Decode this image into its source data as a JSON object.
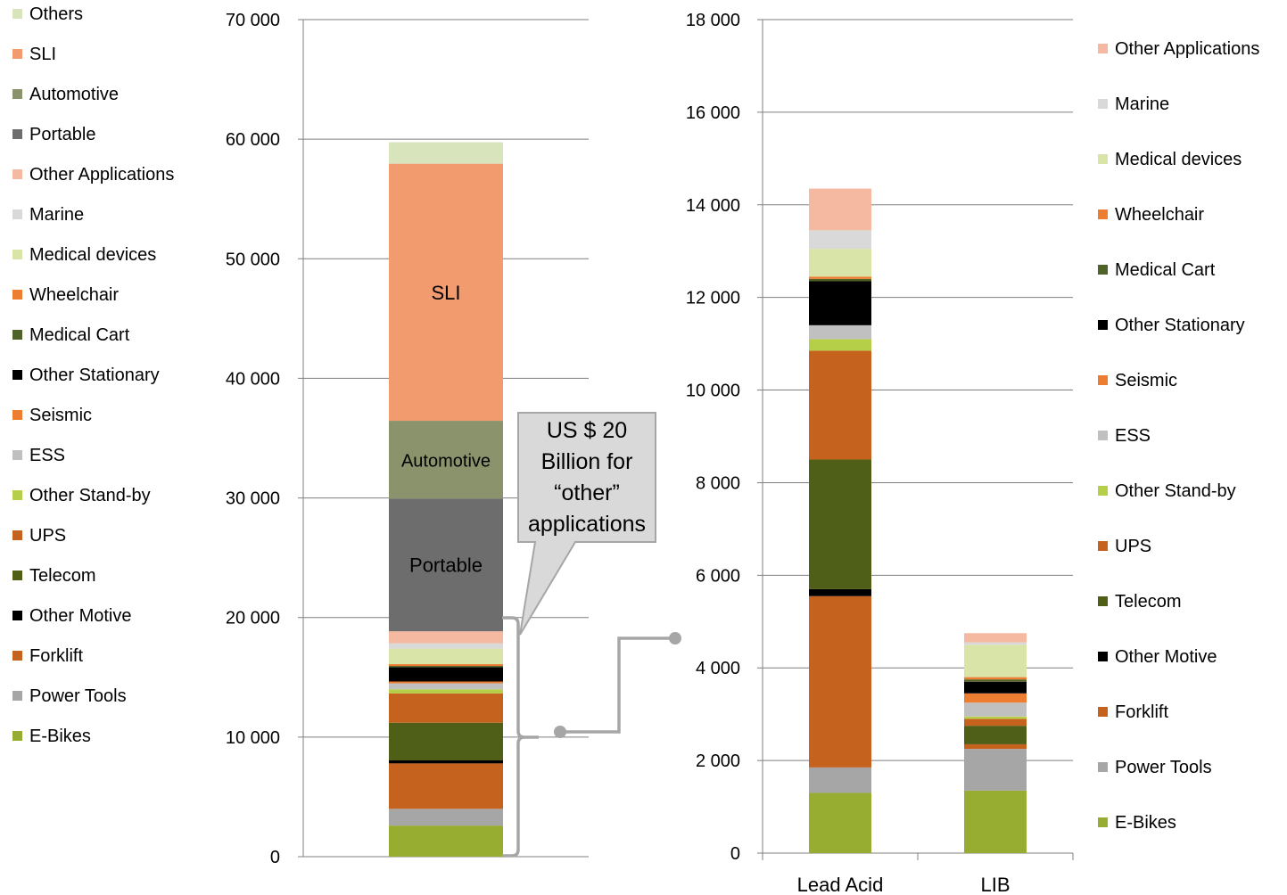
{
  "colors": {
    "Others": "#d8e4bc",
    "SLI": "#f29b6e",
    "Automotive": "#8a936b",
    "Portable": "#6d6d6d",
    "Other Applications": "#f4b9a0",
    "Marine": "#d9d9d9",
    "Medical devices": "#d8e4a8",
    "Wheelchair": "#ed7d31",
    "Medical Cart": "#4f6228",
    "Other Stationary": "#000000",
    "Seismic": "#ed7d31",
    "ESS": "#c0c0c0",
    "Other Stand-by": "#b6cf48",
    "UPS": "#c5621e",
    "Telecom": "#4f5f18",
    "Other Motive": "#000000",
    "Forklift": "#c5621e",
    "Power Tools": "#a6a6a6",
    "E-Bikes": "#96ad32",
    "grid": "#7f7f7f",
    "bracket": "#a6a6a6",
    "callout_fill": "#d9d9d9"
  },
  "callout": {
    "lines": [
      "US $ 20",
      "Billion for",
      "“other”",
      "applications"
    ]
  },
  "chart_data": [
    {
      "type": "bar",
      "stacked": true,
      "ylim": [
        0,
        70000
      ],
      "yticks": [
        "0",
        "10 000",
        "20 000",
        "30 000",
        "40 000",
        "50 000",
        "60 000",
        "70 000"
      ],
      "grid": true,
      "legend_position": "left",
      "legend": [
        "Others",
        "SLI",
        "Automotive",
        "Portable",
        "Other Applications",
        "Marine",
        "Medical devices",
        "Wheelchair",
        "Medical Cart",
        "Other Stationary",
        "Seismic",
        "ESS",
        "Other Stand-by",
        "UPS",
        "Telecom",
        "Other Motive",
        "Forklift",
        "Power Tools",
        "E-Bikes"
      ],
      "segment_labels": {
        "SLI": "SLI",
        "Automotive": "Automotive",
        "Portable": "Portable"
      },
      "series": [
        {
          "name": "E-Bikes",
          "values": [
            2600
          ]
        },
        {
          "name": "Power Tools",
          "values": [
            1400
          ]
        },
        {
          "name": "Forklift",
          "values": [
            3800
          ]
        },
        {
          "name": "Other Motive",
          "values": [
            250
          ]
        },
        {
          "name": "Telecom",
          "values": [
            3150
          ]
        },
        {
          "name": "UPS",
          "values": [
            2450
          ]
        },
        {
          "name": "Other Stand-by",
          "values": [
            350
          ]
        },
        {
          "name": "ESS",
          "values": [
            500
          ]
        },
        {
          "name": "Seismic",
          "values": [
            150
          ]
        },
        {
          "name": "Other Stationary",
          "values": [
            1200
          ]
        },
        {
          "name": "Medical Cart",
          "values": [
            100
          ]
        },
        {
          "name": "Wheelchair",
          "values": [
            150
          ]
        },
        {
          "name": "Medical devices",
          "values": [
            1300
          ]
        },
        {
          "name": "Marine",
          "values": [
            450
          ]
        },
        {
          "name": "Other Applications",
          "values": [
            1000
          ]
        },
        {
          "name": "Portable",
          "values": [
            11100
          ]
        },
        {
          "name": "Automotive",
          "values": [
            6500
          ]
        },
        {
          "name": "SLI",
          "values": [
            21500
          ]
        },
        {
          "name": "Others",
          "values": [
            1800
          ]
        }
      ]
    },
    {
      "type": "bar",
      "stacked": true,
      "categories": [
        "Lead Acid",
        "LIB"
      ],
      "ylim": [
        0,
        18000
      ],
      "yticks": [
        "0",
        "2 000",
        "4 000",
        "6 000",
        "8 000",
        "10 000",
        "12 000",
        "14 000",
        "16 000",
        "18 000"
      ],
      "grid": true,
      "legend_position": "right",
      "legend": [
        "Other Applications",
        "Marine",
        "Medical devices",
        "Wheelchair",
        "Medical Cart",
        "Other Stationary",
        "Seismic",
        "ESS",
        "Other Stand-by",
        "UPS",
        "Telecom",
        "Other Motive",
        "Forklift",
        "Power Tools",
        "E-Bikes"
      ],
      "series": [
        {
          "name": "E-Bikes",
          "values": [
            1300,
            1350
          ]
        },
        {
          "name": "Power Tools",
          "values": [
            550,
            900
          ]
        },
        {
          "name": "Forklift",
          "values": [
            3700,
            100
          ]
        },
        {
          "name": "Other Motive",
          "values": [
            150,
            0
          ]
        },
        {
          "name": "Telecom",
          "values": [
            2800,
            400
          ]
        },
        {
          "name": "UPS",
          "values": [
            2350,
            150
          ]
        },
        {
          "name": "Other Stand-by",
          "values": [
            250,
            50
          ]
        },
        {
          "name": "ESS",
          "values": [
            300,
            300
          ]
        },
        {
          "name": "Seismic",
          "values": [
            0,
            200
          ]
        },
        {
          "name": "Other Stationary",
          "values": [
            950,
            250
          ]
        },
        {
          "name": "Medical Cart",
          "values": [
            50,
            50
          ]
        },
        {
          "name": "Wheelchair",
          "values": [
            50,
            50
          ]
        },
        {
          "name": "Medical devices",
          "values": [
            600,
            700
          ]
        },
        {
          "name": "Marine",
          "values": [
            400,
            50
          ]
        },
        {
          "name": "Other Applications",
          "values": [
            900,
            200
          ]
        }
      ]
    }
  ]
}
